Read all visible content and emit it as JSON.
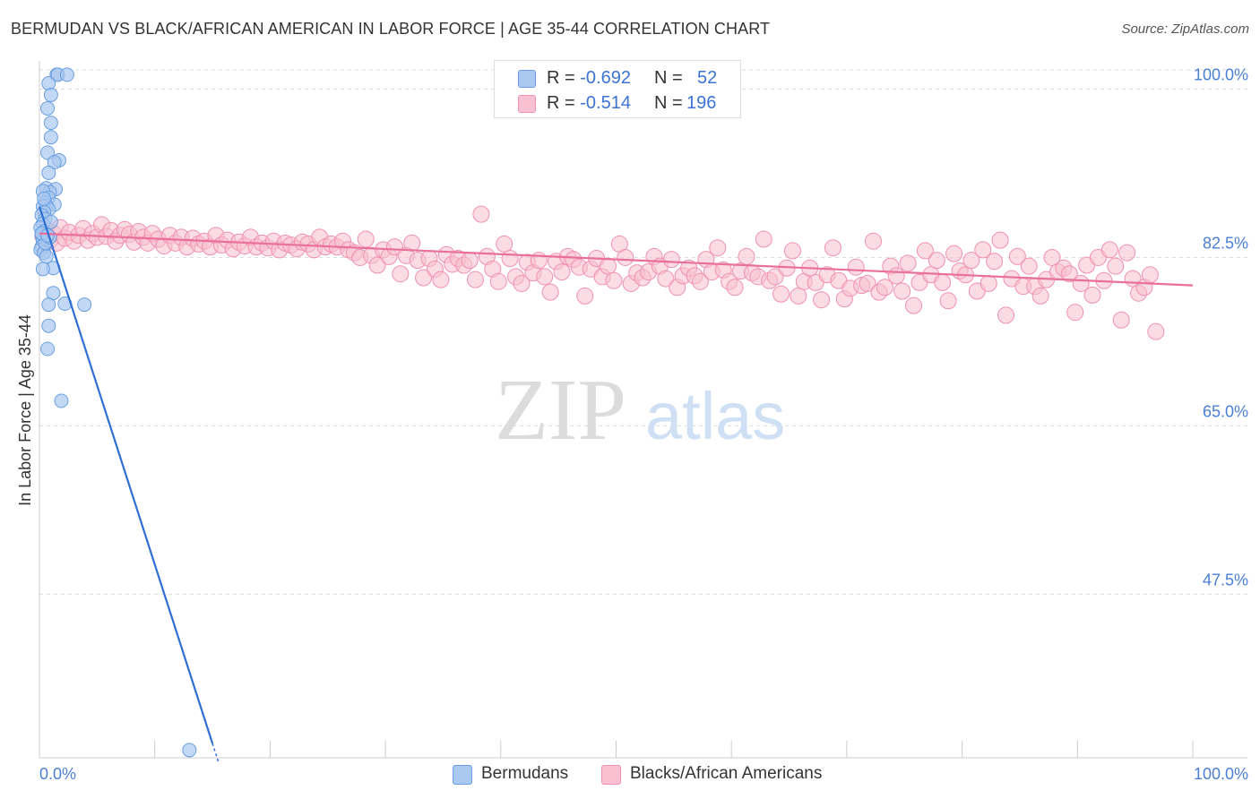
{
  "title": "BERMUDAN VS BLACK/AFRICAN AMERICAN IN LABOR FORCE | AGE 35-44 CORRELATION CHART",
  "source": "Source: ZipAtlas.com",
  "watermark": {
    "zip": "ZIP",
    "atlas": "atlas"
  },
  "legend_top": {
    "rows": [
      {
        "r_label": "R =",
        "r_value": "-0.692",
        "n_label": "N =",
        "n_value": "52",
        "color": "#aac8f0",
        "border": "#6a9fe0"
      },
      {
        "r_label": "R =",
        "r_value": "-0.514",
        "n_label": "N =",
        "n_value": "196",
        "color": "#f8c0d0",
        "border": "#f090b0"
      }
    ]
  },
  "legend_bottom": [
    {
      "label": "Bermudans",
      "color": "#aac8f0",
      "border": "#6a9fe0"
    },
    {
      "label": "Blacks/African Americans",
      "color": "#f8c0d0",
      "border": "#f090b0"
    }
  ],
  "chart_data": {
    "type": "scatter",
    "title": "BERMUDAN VS BLACK/AFRICAN AMERICAN IN LABOR FORCE | AGE 35-44 CORRELATION CHART",
    "xlabel": "",
    "ylabel": "In Labor Force | Age 35-44",
    "xlim": [
      0,
      100
    ],
    "ylim": [
      30.5,
      102
    ],
    "x_tick_labels": [
      "0.0%",
      "100.0%"
    ],
    "y_ticks": [
      47.5,
      65.0,
      82.5,
      100.0
    ],
    "y_tick_labels": [
      "47.5%",
      "65.0%",
      "82.5%",
      "100.0%"
    ],
    "grid": "horizontal dashed",
    "legend_position": "bottom-center",
    "series": [
      {
        "name": "Bermudans",
        "color": "#6a9fe0",
        "fill": "#aac8f0",
        "trend": {
          "x": [
            0.0,
            15.0
          ],
          "y": [
            87.8,
            32.0
          ],
          "color": "#2f6fd6"
        },
        "points": [
          [
            1.5,
            101.5
          ],
          [
            1.6,
            101.5
          ],
          [
            2.4,
            101.5
          ],
          [
            0.8,
            100.6
          ],
          [
            1.0,
            99.4
          ],
          [
            0.7,
            98.0
          ],
          [
            1.0,
            96.5
          ],
          [
            1.0,
            95.0
          ],
          [
            0.7,
            93.4
          ],
          [
            1.7,
            92.6
          ],
          [
            1.3,
            92.4
          ],
          [
            0.8,
            91.3
          ],
          [
            0.6,
            89.7
          ],
          [
            1.4,
            89.6
          ],
          [
            0.9,
            89.3
          ],
          [
            0.3,
            89.4
          ],
          [
            0.8,
            88.7
          ],
          [
            0.5,
            88.2
          ],
          [
            1.3,
            88.0
          ],
          [
            0.6,
            87.9
          ],
          [
            0.3,
            87.8
          ],
          [
            0.8,
            87.5
          ],
          [
            0.4,
            87.2
          ],
          [
            0.2,
            86.9
          ],
          [
            0.5,
            86.5
          ],
          [
            0.3,
            86.0
          ],
          [
            0.1,
            85.6
          ],
          [
            0.4,
            85.2
          ],
          [
            0.2,
            84.8
          ],
          [
            0.6,
            84.5
          ],
          [
            0.3,
            84.2
          ],
          [
            0.5,
            83.9
          ],
          [
            0.2,
            83.6
          ],
          [
            0.1,
            83.3
          ],
          [
            0.4,
            83.0
          ],
          [
            0.6,
            82.6
          ],
          [
            1.2,
            81.4
          ],
          [
            0.3,
            81.3
          ],
          [
            1.2,
            78.8
          ],
          [
            0.8,
            77.6
          ],
          [
            2.2,
            77.7
          ],
          [
            3.9,
            77.6
          ],
          [
            0.8,
            75.4
          ],
          [
            0.7,
            73.0
          ],
          [
            1.9,
            67.6
          ],
          [
            13.0,
            31.3
          ],
          [
            0.5,
            84.0
          ],
          [
            0.9,
            84.6
          ],
          [
            0.2,
            85.0
          ],
          [
            1.0,
            86.2
          ],
          [
            0.4,
            88.6
          ],
          [
            0.7,
            84.8
          ]
        ]
      },
      {
        "name": "Blacks/African Americans",
        "color": "#f090b0",
        "fill": "#f8c0d0",
        "trend": {
          "x": [
            0.0,
            100.0
          ],
          "y": [
            85.0,
            79.6
          ],
          "color": "#e8709a"
        },
        "points": [
          [
            0.3,
            84.7
          ],
          [
            0.6,
            85.4
          ],
          [
            0.9,
            84.3
          ],
          [
            1.2,
            85.0
          ],
          [
            1.5,
            84.0
          ],
          [
            1.8,
            85.6
          ],
          [
            2.2,
            84.5
          ],
          [
            2.6,
            85.1
          ],
          [
            3.0,
            84.2
          ],
          [
            3.4,
            84.8
          ],
          [
            3.8,
            85.5
          ],
          [
            4.2,
            84.3
          ],
          [
            4.6,
            85.0
          ],
          [
            5.0,
            84.6
          ],
          [
            5.4,
            85.9
          ],
          [
            5.8,
            84.7
          ],
          [
            6.2,
            85.3
          ],
          [
            6.6,
            84.2
          ],
          [
            7.0,
            84.8
          ],
          [
            7.4,
            85.4
          ],
          [
            7.8,
            84.9
          ],
          [
            8.2,
            84.1
          ],
          [
            8.6,
            85.2
          ],
          [
            9.0,
            84.6
          ],
          [
            9.4,
            84.0
          ],
          [
            9.8,
            85.0
          ],
          [
            10.3,
            84.4
          ],
          [
            10.8,
            83.7
          ],
          [
            11.3,
            84.8
          ],
          [
            11.8,
            84.0
          ],
          [
            12.3,
            84.6
          ],
          [
            12.8,
            83.6
          ],
          [
            13.3,
            84.5
          ],
          [
            13.8,
            83.9
          ],
          [
            14.3,
            84.2
          ],
          [
            14.8,
            83.6
          ],
          [
            15.3,
            84.8
          ],
          [
            15.8,
            83.8
          ],
          [
            16.3,
            84.3
          ],
          [
            16.8,
            83.4
          ],
          [
            17.3,
            84.1
          ],
          [
            17.8,
            83.7
          ],
          [
            18.3,
            84.6
          ],
          [
            18.8,
            83.6
          ],
          [
            19.3,
            84.0
          ],
          [
            19.8,
            83.5
          ],
          [
            20.3,
            84.2
          ],
          [
            20.8,
            83.3
          ],
          [
            21.3,
            84.0
          ],
          [
            21.8,
            83.8
          ],
          [
            22.3,
            83.4
          ],
          [
            22.8,
            84.1
          ],
          [
            23.3,
            83.9
          ],
          [
            23.8,
            83.3
          ],
          [
            24.3,
            84.6
          ],
          [
            24.8,
            83.6
          ],
          [
            25.3,
            83.9
          ],
          [
            25.8,
            83.6
          ],
          [
            26.3,
            84.2
          ],
          [
            26.8,
            83.3
          ],
          [
            27.3,
            83.0
          ],
          [
            27.8,
            82.5
          ],
          [
            28.3,
            84.4
          ],
          [
            28.8,
            82.7
          ],
          [
            29.3,
            81.7
          ],
          [
            29.8,
            83.3
          ],
          [
            30.3,
            82.6
          ],
          [
            30.8,
            83.6
          ],
          [
            31.3,
            80.8
          ],
          [
            31.8,
            82.7
          ],
          [
            32.3,
            84.0
          ],
          [
            32.8,
            82.2
          ],
          [
            33.3,
            80.4
          ],
          [
            33.8,
            82.4
          ],
          [
            34.3,
            81.3
          ],
          [
            34.8,
            80.2
          ],
          [
            35.3,
            82.8
          ],
          [
            35.8,
            81.8
          ],
          [
            36.3,
            82.4
          ],
          [
            36.8,
            81.7
          ],
          [
            37.3,
            82.2
          ],
          [
            37.8,
            80.2
          ],
          [
            38.3,
            87.0
          ],
          [
            38.8,
            82.6
          ],
          [
            39.3,
            81.3
          ],
          [
            39.8,
            80.0
          ],
          [
            40.3,
            83.9
          ],
          [
            40.8,
            82.4
          ],
          [
            41.3,
            80.5
          ],
          [
            41.8,
            79.8
          ],
          [
            42.3,
            82.0
          ],
          [
            42.8,
            80.9
          ],
          [
            43.3,
            82.2
          ],
          [
            43.8,
            80.5
          ],
          [
            44.3,
            78.9
          ],
          [
            44.8,
            82.1
          ],
          [
            45.3,
            81.0
          ],
          [
            45.8,
            82.6
          ],
          [
            46.3,
            82.3
          ],
          [
            46.8,
            81.5
          ],
          [
            47.3,
            78.5
          ],
          [
            47.8,
            81.3
          ],
          [
            48.3,
            82.4
          ],
          [
            48.8,
            80.5
          ],
          [
            49.3,
            81.6
          ],
          [
            49.8,
            80.1
          ],
          [
            50.3,
            83.9
          ],
          [
            50.8,
            82.5
          ],
          [
            51.3,
            79.8
          ],
          [
            51.8,
            80.9
          ],
          [
            52.3,
            80.4
          ],
          [
            52.8,
            81.0
          ],
          [
            53.3,
            82.6
          ],
          [
            53.8,
            81.6
          ],
          [
            54.3,
            80.3
          ],
          [
            54.8,
            82.3
          ],
          [
            55.3,
            79.4
          ],
          [
            55.8,
            80.6
          ],
          [
            56.3,
            81.4
          ],
          [
            56.8,
            80.6
          ],
          [
            57.3,
            80.0
          ],
          [
            57.8,
            82.3
          ],
          [
            58.3,
            81.0
          ],
          [
            58.8,
            83.5
          ],
          [
            59.3,
            81.2
          ],
          [
            59.8,
            80.0
          ],
          [
            60.3,
            79.4
          ],
          [
            60.8,
            81.1
          ],
          [
            61.3,
            82.6
          ],
          [
            61.8,
            80.9
          ],
          [
            62.3,
            80.5
          ],
          [
            62.8,
            84.4
          ],
          [
            63.3,
            80.1
          ],
          [
            63.8,
            80.5
          ],
          [
            64.3,
            78.7
          ],
          [
            64.8,
            81.4
          ],
          [
            65.3,
            83.2
          ],
          [
            65.8,
            78.5
          ],
          [
            66.3,
            80.0
          ],
          [
            66.8,
            81.4
          ],
          [
            67.3,
            79.9
          ],
          [
            67.8,
            78.1
          ],
          [
            68.3,
            80.7
          ],
          [
            68.8,
            83.5
          ],
          [
            69.3,
            80.1
          ],
          [
            69.8,
            78.2
          ],
          [
            70.3,
            79.3
          ],
          [
            70.8,
            81.5
          ],
          [
            71.3,
            79.6
          ],
          [
            71.8,
            79.8
          ],
          [
            72.3,
            84.2
          ],
          [
            72.8,
            78.9
          ],
          [
            73.3,
            79.4
          ],
          [
            73.8,
            81.6
          ],
          [
            74.3,
            80.6
          ],
          [
            74.8,
            79.0
          ],
          [
            75.3,
            81.9
          ],
          [
            75.8,
            77.5
          ],
          [
            76.3,
            79.9
          ],
          [
            76.8,
            83.2
          ],
          [
            77.3,
            80.7
          ],
          [
            77.8,
            82.2
          ],
          [
            78.3,
            79.9
          ],
          [
            78.8,
            78.0
          ],
          [
            79.3,
            82.9
          ],
          [
            79.8,
            81.1
          ],
          [
            80.3,
            80.7
          ],
          [
            80.8,
            82.2
          ],
          [
            81.3,
            79.0
          ],
          [
            81.8,
            83.3
          ],
          [
            82.3,
            79.8
          ],
          [
            82.8,
            82.1
          ],
          [
            83.3,
            84.3
          ],
          [
            83.8,
            76.5
          ],
          [
            84.3,
            80.3
          ],
          [
            84.8,
            82.6
          ],
          [
            85.3,
            79.5
          ],
          [
            85.8,
            81.6
          ],
          [
            86.3,
            79.5
          ],
          [
            86.8,
            78.5
          ],
          [
            87.3,
            80.2
          ],
          [
            87.8,
            82.5
          ],
          [
            88.3,
            81.0
          ],
          [
            88.8,
            81.4
          ],
          [
            89.3,
            80.8
          ],
          [
            89.8,
            76.8
          ],
          [
            90.3,
            79.8
          ],
          [
            90.8,
            81.7
          ],
          [
            91.3,
            78.6
          ],
          [
            91.8,
            82.5
          ],
          [
            92.3,
            80.1
          ],
          [
            92.8,
            83.3
          ],
          [
            93.3,
            81.6
          ],
          [
            93.8,
            76.0
          ],
          [
            94.3,
            83.0
          ],
          [
            94.8,
            80.3
          ],
          [
            95.3,
            78.8
          ],
          [
            95.8,
            79.4
          ],
          [
            96.3,
            80.7
          ],
          [
            96.8,
            74.8
          ]
        ]
      }
    ]
  }
}
